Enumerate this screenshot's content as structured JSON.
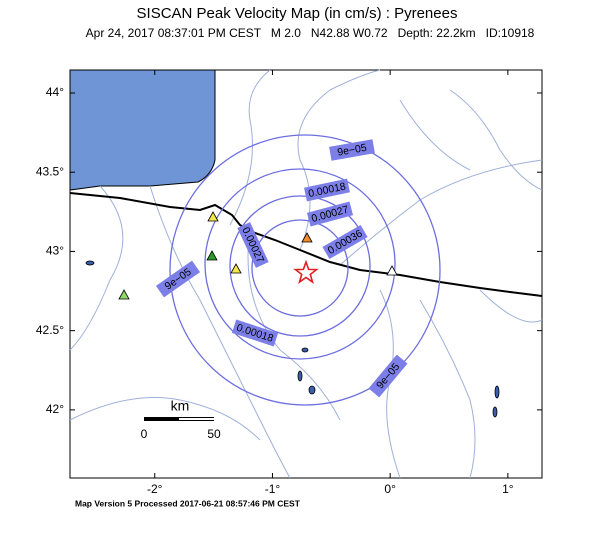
{
  "header": {
    "title": "SISCAN Peak Velocity Map (in cm/s) : Pyrenees",
    "subtitle": "Apr 24, 2017 08:37:01 PM CEST   M 2.0   N42.88 W0.72   Depth: 22.2km   ID:10918"
  },
  "map": {
    "lonlim": [
      -2.72,
      1.29
    ],
    "latlim": [
      41.57,
      44.145
    ],
    "lon_ticks": [
      {
        "value": -2,
        "label": "-2°"
      },
      {
        "value": -1,
        "label": "-1°"
      },
      {
        "value": 0,
        "label": "0°"
      },
      {
        "value": 1,
        "label": "1°"
      }
    ],
    "lat_ticks": [
      {
        "value": 42,
        "label": "42°"
      },
      {
        "value": 42.5,
        "label": "42.5°"
      },
      {
        "value": 43,
        "label": "43°"
      },
      {
        "value": 43.5,
        "label": "43.5°"
      },
      {
        "value": 44,
        "label": "44°"
      }
    ],
    "contour_labels": [
      "9e−05",
      "0.00018",
      "0.00027",
      "0.00036",
      "0.00027",
      "9e−05",
      "0.00018",
      "9e−05"
    ],
    "scale_bar": {
      "unit": "km",
      "labels": [
        "0",
        "50"
      ]
    }
  },
  "footer": "Map Version 5 Processed 2017-06-21 08:57:46 PM CEST"
}
